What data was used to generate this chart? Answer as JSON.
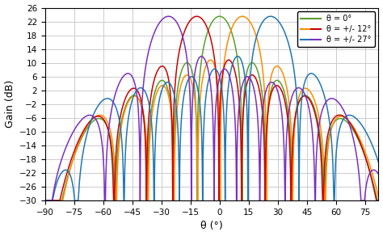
{
  "title": "",
  "xlabel": "θ (°)",
  "ylabel": "Gain (dB)",
  "xlim": [
    -90,
    82
  ],
  "ylim": [
    -30,
    26
  ],
  "xticks": [
    -90,
    -75,
    -60,
    -45,
    -30,
    -15,
    0,
    15,
    30,
    45,
    60,
    75
  ],
  "yticks": [
    -30,
    -26,
    -22,
    -18,
    -14,
    -10,
    -6,
    -2,
    2,
    6,
    10,
    14,
    18,
    22,
    26
  ],
  "curves": [
    {
      "label": "θ = 0°",
      "color": "#5aa02c",
      "steer": 0
    },
    {
      "label": null,
      "color": "#ff8c00",
      "steer": 12
    },
    {
      "label": null,
      "color": "#cc0000",
      "steer": -12
    },
    {
      "label": null,
      "color": "#1f77b4",
      "steer": 27
    },
    {
      "label": null,
      "color": "#7b2fbe",
      "steer": -27
    }
  ],
  "legend_entries": [
    {
      "label": "θ = 0°",
      "color": "#5aa02c"
    },
    {
      "label": "θ = +/- 12°",
      "colors": [
        "#ff8c00",
        "#cc0000"
      ]
    },
    {
      "label": "θ = +/- 27°",
      "colors": [
        "#1f77b4",
        "#7b2fbe"
      ]
    }
  ],
  "N": 9,
  "d_over_lambda": 0.55,
  "peak_gain_dB": 23.5,
  "floor_dB": -30,
  "grid_color": "#cccccc"
}
